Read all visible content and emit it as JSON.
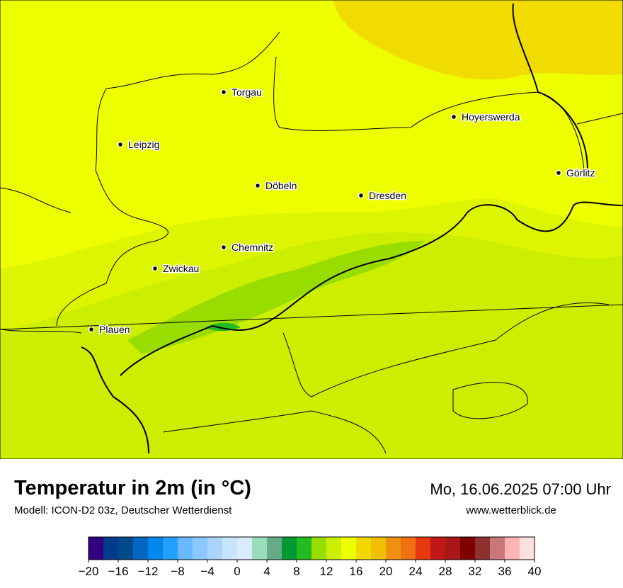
{
  "map": {
    "cities": [
      "Torgau",
      "Leipzig",
      "Döbeln",
      "Dresden",
      "Hoyerswerda",
      "Görlitz",
      "Chemnitz",
      "Zwickau",
      "Plauen"
    ]
  },
  "legend": {
    "title": "Temperatur in 2m (in °C)",
    "subtitle": "Modell: ICON-D2 03z, Deutscher Wetterdienst",
    "date": "Mo, 16.06.2025 07:00 Uhr",
    "source": "www.wetterblick.de",
    "colors": [
      "#33007f",
      "#003a8c",
      "#004a8c",
      "#0066bf",
      "#0088ee",
      "#22a0ff",
      "#6ab8ff",
      "#8cc8ff",
      "#aad4ff",
      "#c8e4ff",
      "#daeaff",
      "#99ddbb",
      "#66aa88",
      "#009933",
      "#22bb22",
      "#99dd00",
      "#ccee00",
      "#eeff00",
      "#f0d800",
      "#f0c000",
      "#f09010",
      "#f07010",
      "#e83810",
      "#c01818",
      "#a81818",
      "#800000",
      "#8c3030",
      "#c87878",
      "#ffb4b4",
      "#ffe0e0"
    ],
    "ticks": [
      {
        "value": -20,
        "label": "−20"
      },
      {
        "value": -16,
        "label": "−16"
      },
      {
        "value": -12,
        "label": "−12"
      },
      {
        "value": -8,
        "label": "−8"
      },
      {
        "value": -4,
        "label": "−4"
      },
      0,
      4,
      8,
      12,
      16,
      20,
      24,
      28,
      32,
      36,
      40
    ]
  }
}
